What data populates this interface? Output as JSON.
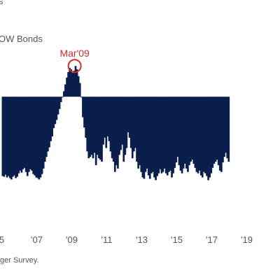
{
  "header": {
    "title_fragment": "s",
    "series_label": "OW Bonds"
  },
  "footer": {
    "source": "ger Survey."
  },
  "colors": {
    "bars": "#0b1f4d",
    "highlight": "#d42a2a",
    "axis_text": "#55565a",
    "background": "#ffffff"
  },
  "chart_data": {
    "type": "bar",
    "title": "",
    "xlabel": "",
    "ylabel": "",
    "baseline": 0,
    "ylim": [
      -140,
      80
    ],
    "xlim": [
      2004.9,
      2020.9
    ],
    "grid": false,
    "x_tick_labels": [
      {
        "year": 2005,
        "label": "5"
      },
      {
        "year": 2007,
        "label": "'07"
      },
      {
        "year": 2009,
        "label": "'09"
      },
      {
        "year": 2011,
        "label": "'11"
      },
      {
        "year": 2013,
        "label": "'13"
      },
      {
        "year": 2015,
        "label": "'15"
      },
      {
        "year": 2017,
        "label": "'17"
      },
      {
        "year": 2019,
        "label": "'19"
      }
    ],
    "annotation": {
      "label": "Mar'09",
      "date": "2009-03",
      "value": 45
    },
    "series": [
      {
        "start": "2005-01",
        "frequency": "monthly",
        "values": [
          -116,
          -117,
          -114,
          -118,
          -116,
          -119,
          -121,
          -117,
          -115,
          -119,
          -117,
          -112,
          -108,
          -111,
          -106,
          -104,
          -110,
          -116,
          -110,
          -106,
          -108,
          -113,
          -115,
          -118,
          -119,
          -121,
          -118,
          -113,
          -105,
          -95,
          -88,
          -80,
          -74,
          -65,
          -58,
          -46,
          -40,
          -34,
          -26,
          -18,
          -8,
          0,
          8,
          18,
          28,
          36,
          42,
          40,
          35,
          38,
          45,
          40,
          30,
          20,
          0,
          -30,
          -45,
          -60,
          -80,
          -90,
          -88,
          -85,
          -90,
          -82,
          -100,
          -85,
          -90,
          -92,
          -95,
          -70,
          -60,
          -75,
          -58,
          -65,
          -80,
          -90,
          -95,
          -110,
          -100,
          -105,
          -85,
          -78,
          -70,
          -95,
          -85,
          -75,
          -52,
          -60,
          -75,
          -90,
          -80,
          -75,
          -95,
          -105,
          -100,
          -110,
          -118,
          -120,
          -110,
          -105,
          -115,
          -120,
          -112,
          -110,
          -118,
          -122,
          -116,
          -112,
          -106,
          -112,
          -110,
          -105,
          -112,
          -115,
          -110,
          -108,
          -118,
          -112,
          -104,
          -96,
          -88,
          -100,
          -108,
          -112,
          -105,
          -98,
          -105,
          -110,
          -100,
          -95,
          -92,
          -98,
          -104,
          -110,
          -112,
          -108,
          -115,
          -118,
          -110,
          -112,
          -116,
          -122,
          -118,
          -112,
          -104,
          -98,
          -95,
          -92,
          -100,
          -108,
          -110,
          -96,
          -88,
          -82,
          -90,
          -95
        ]
      }
    ]
  }
}
